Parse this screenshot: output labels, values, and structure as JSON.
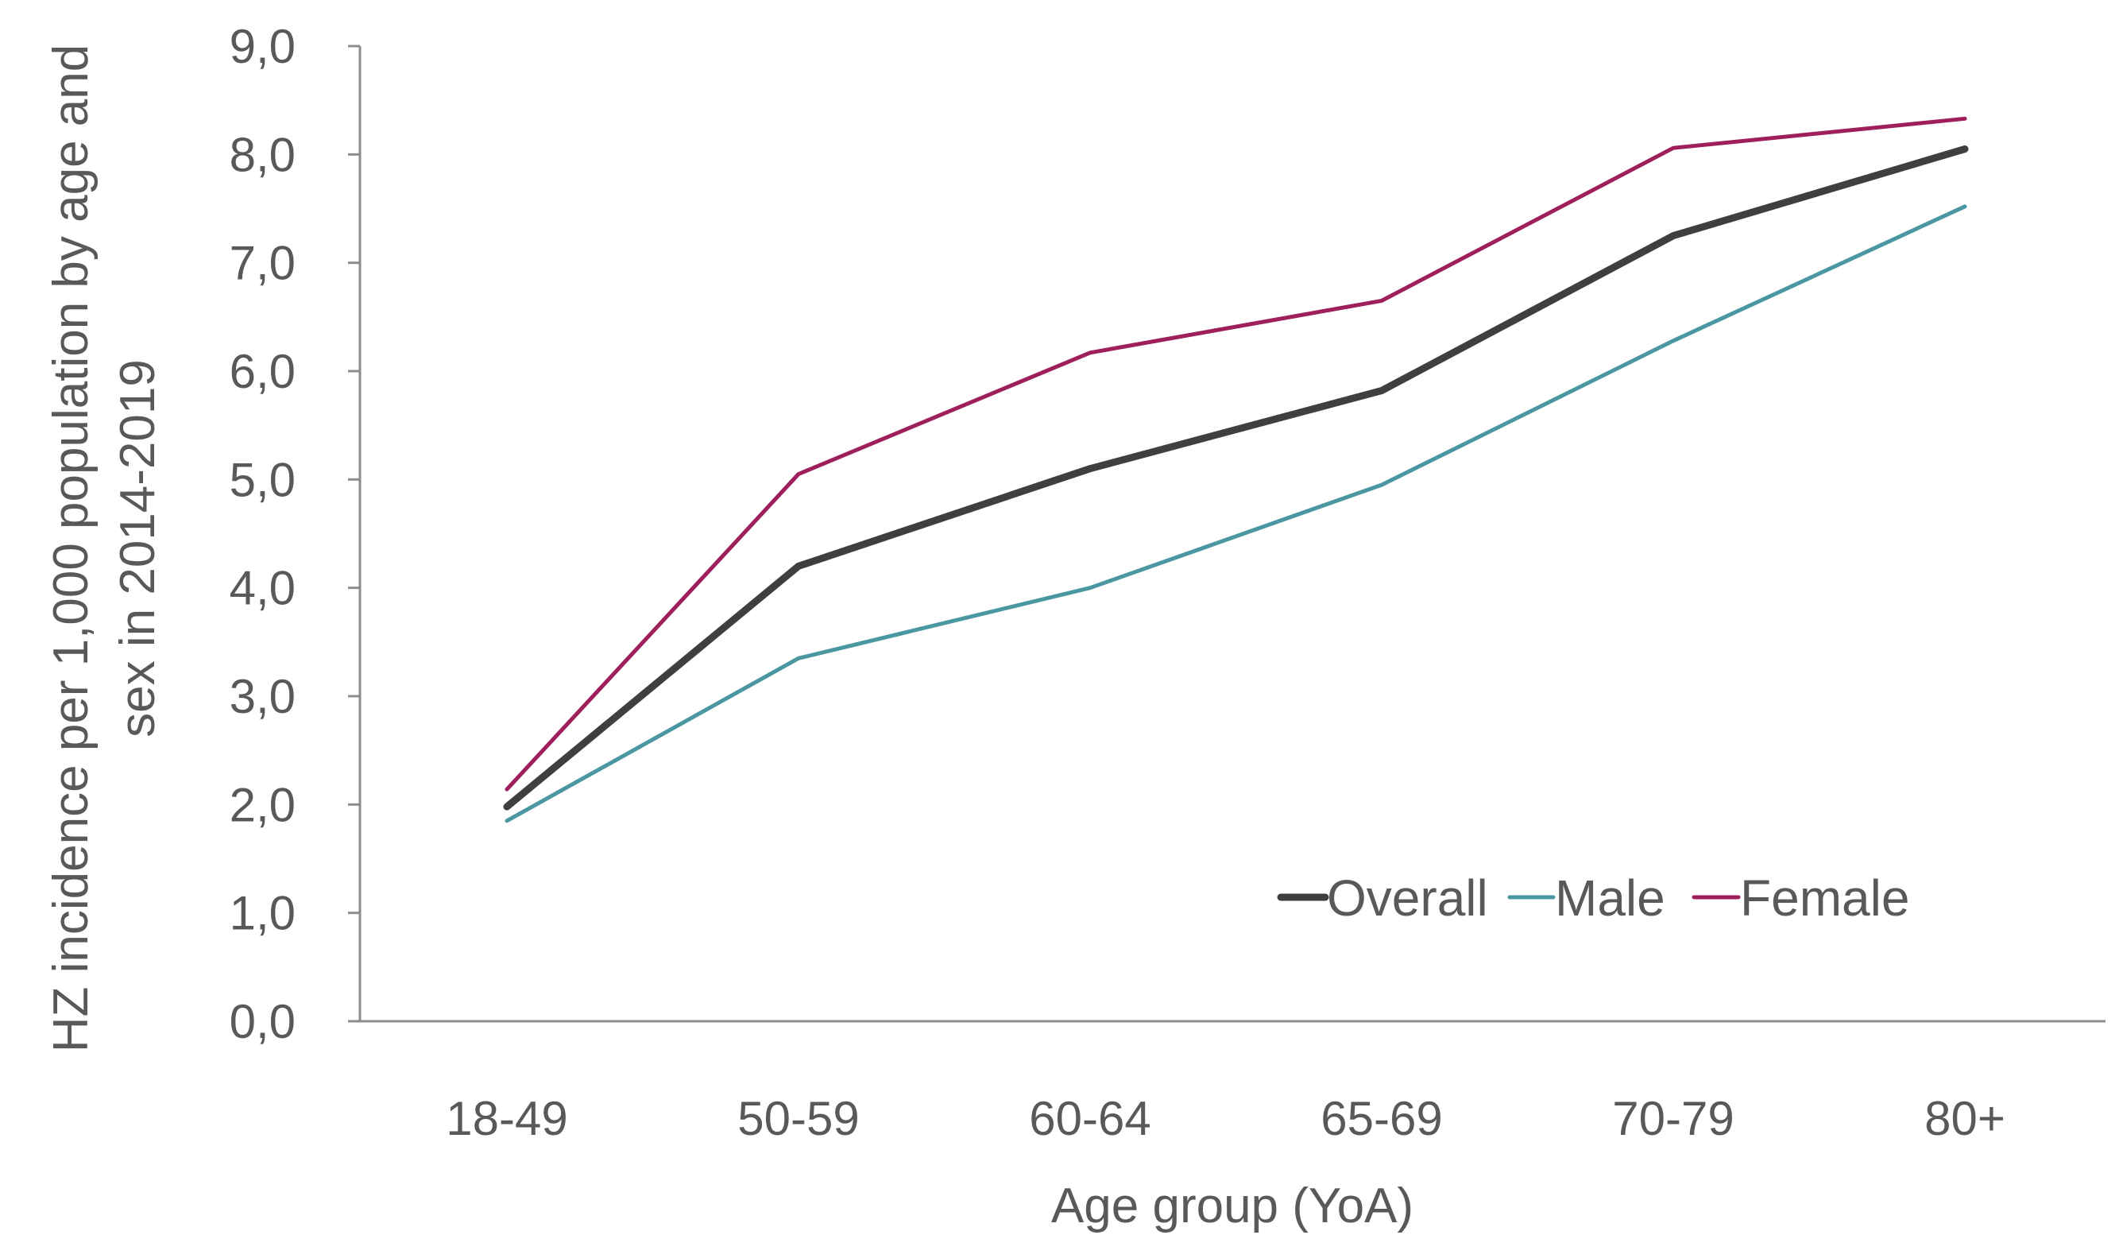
{
  "chart_data": {
    "type": "line",
    "title": "",
    "xlabel": "Age group (YoA)",
    "ylabel_lines": [
      "HZ incidence per 1,000 population by age and",
      "sex in 2014-2019"
    ],
    "categories": [
      "18-49",
      "50-59",
      "60-64",
      "65-69",
      "70-79",
      "80+"
    ],
    "ylim": [
      0,
      9
    ],
    "yticks": [
      "0,0",
      "1,0",
      "2,0",
      "3,0",
      "4,0",
      "5,0",
      "6,0",
      "7,0",
      "8,0",
      "9,0"
    ],
    "grid": false,
    "legend_position": "bottom-right inside plot",
    "series": [
      {
        "name": "Overall",
        "color": "#3f3f41",
        "values": [
          1.98,
          4.2,
          5.1,
          5.82,
          7.25,
          8.05
        ]
      },
      {
        "name": "Male",
        "color": "#4a97a2",
        "values": [
          1.85,
          3.35,
          4.0,
          4.95,
          6.28,
          7.52
        ]
      },
      {
        "name": "Female",
        "color": "#9e1f5c",
        "values": [
          2.14,
          5.05,
          6.17,
          6.65,
          8.06,
          8.33
        ]
      }
    ]
  }
}
